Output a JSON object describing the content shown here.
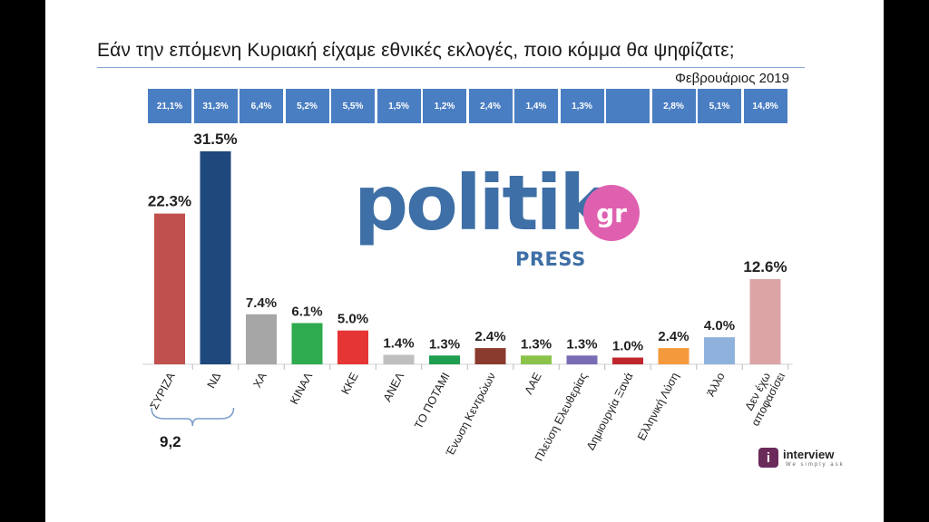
{
  "title": "Εάν την επόμενη Κυριακή είχαμε εθνικές εκλογές, ποιο κόμμα θα ψηφίζατε;",
  "subtitle": "Φεβρουάριος 2019",
  "logo": {
    "main": "politik",
    "badge": "gr",
    "sub": "PRESS"
  },
  "brand": {
    "name": "interview",
    "tagline": "We simply ask",
    "icon_glyph": "i"
  },
  "brace_total": "9,2",
  "colors": {
    "strip": "#4a7ec2",
    "logo": "#3e6fa6",
    "badge": "#e060b0"
  },
  "chart_data": {
    "type": "bar",
    "categories": [
      "ΣΥΡΙΖΑ",
      "ΝΔ",
      "ΧΑ",
      "ΚΙΝΑΛ",
      "ΚΚΕ",
      "ΑΝΕΛ",
      "ΤΟ ΠΟΤΑΜΙ",
      "Ένωση Κεντρώων",
      "ΛΑΕ",
      "Πλεύση Ελευθερίας",
      "Δημιουργία Ξανά",
      "Ελληνική Λύση",
      "Άλλο",
      "Δεν έχω αποφασίσει"
    ],
    "values": [
      22.3,
      31.5,
      7.4,
      6.1,
      5.0,
      1.4,
      1.3,
      2.4,
      1.3,
      1.3,
      1.0,
      2.4,
      4.0,
      12.6
    ],
    "value_labels": [
      "22.3%",
      "31.5%",
      "7.4%",
      "6.1%",
      "5.0%",
      "1.4%",
      "1.3%",
      "2.4%",
      "1.3%",
      "1.3%",
      "1.0%",
      "2.4%",
      "4.0%",
      "12.6%"
    ],
    "previous_labels": [
      "21,1%",
      "31,3%",
      "6,4%",
      "5,2%",
      "5,5%",
      "1,5%",
      "1,2%",
      "2,4%",
      "1,4%",
      "1,3%",
      "",
      "2,8%",
      "5,1%",
      "14,8%"
    ],
    "colors": [
      "#c0504d",
      "#1f497d",
      "#a6a6a6",
      "#2eab4e",
      "#e53535",
      "#bfbfbf",
      "#1e9e4e",
      "#8b3a2e",
      "#8bc34a",
      "#7a6bb5",
      "#c0272d",
      "#f59a3c",
      "#8fb2dc",
      "#dba5a5"
    ],
    "ylim": [
      0,
      35
    ],
    "grid": false,
    "legend": "none"
  }
}
